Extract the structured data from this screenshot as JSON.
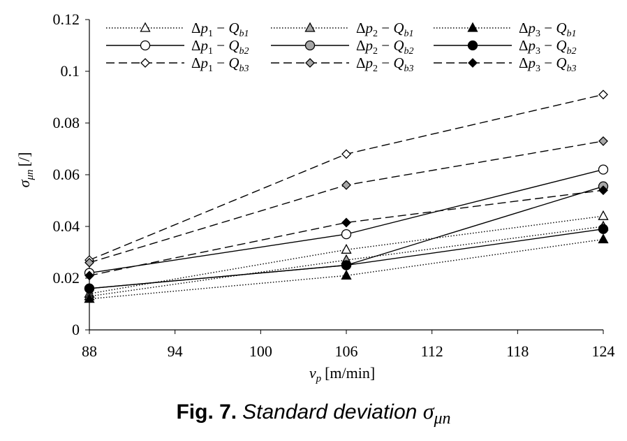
{
  "chart_data": {
    "type": "line",
    "x_axis": {
      "label_main": "v",
      "label_sub": "p",
      "label_unit": "[m/min]",
      "ticks": [
        88,
        94,
        100,
        106,
        112,
        118,
        124
      ],
      "range": [
        88,
        124
      ]
    },
    "y_axis": {
      "label_main": "σ",
      "label_sub": "μn",
      "label_unit": "[/]",
      "ticks": [
        0,
        0.02,
        0.04,
        0.06,
        0.08,
        0.1,
        0.12
      ],
      "range": [
        0,
        0.12
      ]
    },
    "grid": false,
    "legend_position": "top",
    "x": [
      88,
      106,
      124
    ],
    "series": [
      {
        "name": "Δp1 − Qb1",
        "line": "dotted",
        "marker": "triangle",
        "fill": "#ffffff",
        "values": [
          0.014,
          0.031,
          0.044
        ]
      },
      {
        "name": "Δp2 − Qb1",
        "line": "dotted",
        "marker": "triangle",
        "fill": "#a6a6a6",
        "values": [
          0.013,
          0.027,
          0.04
        ]
      },
      {
        "name": "Δp3 − Qb1",
        "line": "dotted",
        "marker": "triangle",
        "fill": "#000000",
        "values": [
          0.012,
          0.021,
          0.035
        ]
      },
      {
        "name": "Δp1 − Qb2",
        "line": "solid",
        "marker": "circle",
        "fill": "#ffffff",
        "values": [
          0.022,
          0.037,
          0.062
        ]
      },
      {
        "name": "Δp2 − Qb2",
        "line": "solid",
        "marker": "circle",
        "fill": "#a6a6a6",
        "values": [
          0.016,
          0.025,
          0.0555
        ]
      },
      {
        "name": "Δp3 − Qb2",
        "line": "solid",
        "marker": "circle",
        "fill": "#000000",
        "values": [
          0.016,
          0.025,
          0.039
        ]
      },
      {
        "name": "Δp1 − Qb3",
        "line": "dashed",
        "marker": "diamond",
        "fill": "#ffffff",
        "values": [
          0.027,
          0.068,
          0.091
        ]
      },
      {
        "name": "Δp2 − Qb3",
        "line": "dashed",
        "marker": "diamond",
        "fill": "#a6a6a6",
        "values": [
          0.026,
          0.056,
          0.073
        ]
      },
      {
        "name": "Δp3 − Qb3",
        "line": "dashed",
        "marker": "diamond",
        "fill": "#000000",
        "values": [
          0.021,
          0.0415,
          0.054
        ]
      }
    ],
    "legend_labels": [
      {
        "delta": "Δ",
        "p": "p",
        "p_sub": "1",
        "dash": " − ",
        "q": "Q",
        "q_sub": "b1"
      },
      {
        "delta": "Δ",
        "p": "p",
        "p_sub": "2",
        "dash": " − ",
        "q": "Q",
        "q_sub": "b1"
      },
      {
        "delta": "Δ",
        "p": "p",
        "p_sub": "3",
        "dash": " − ",
        "q": "Q",
        "q_sub": "b1"
      },
      {
        "delta": "Δ",
        "p": "p",
        "p_sub": "1",
        "dash": " − ",
        "q": "Q",
        "q_sub": "b2"
      },
      {
        "delta": "Δ",
        "p": "p",
        "p_sub": "2",
        "dash": " − ",
        "q": "Q",
        "q_sub": "b2"
      },
      {
        "delta": "Δ",
        "p": "p",
        "p_sub": "3",
        "dash": " − ",
        "q": "Q",
        "q_sub": "b2"
      },
      {
        "delta": "Δ",
        "p": "p",
        "p_sub": "1",
        "dash": " − ",
        "q": "Q",
        "q_sub": "b3"
      },
      {
        "delta": "Δ",
        "p": "p",
        "p_sub": "2",
        "dash": " − ",
        "q": "Q",
        "q_sub": "b3"
      },
      {
        "delta": "Δ",
        "p": "p",
        "p_sub": "3",
        "dash": " − ",
        "q": "Q",
        "q_sub": "b3"
      }
    ]
  },
  "caption": {
    "fig_label": "Fig. 7.",
    "title_text": "Standard deviation",
    "symbol": "σ",
    "symbol_sub": "μn"
  }
}
